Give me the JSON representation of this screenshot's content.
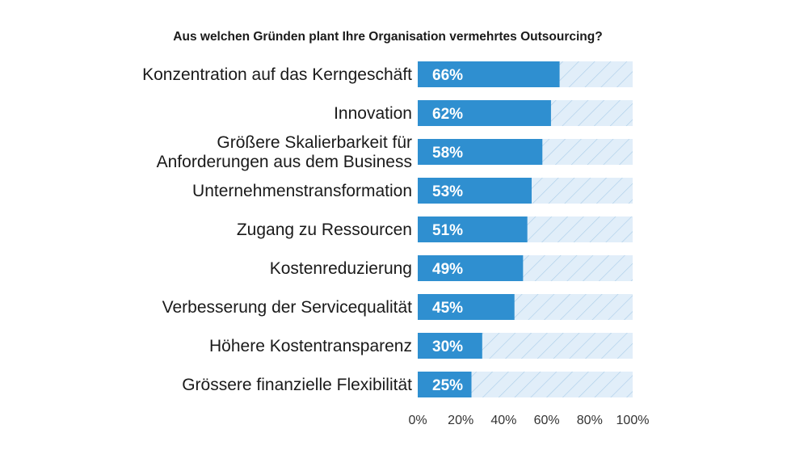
{
  "chart_data": {
    "type": "bar",
    "orientation": "horizontal",
    "title": "Aus welchen Gründen plant Ihre Organisation vermehrtes Outsourcing?",
    "categories": [
      [
        "Konzentration auf das Kerngeschäft"
      ],
      [
        "Innovation"
      ],
      [
        "Größere Skalierbarkeit für",
        "Anforderungen aus dem Business"
      ],
      [
        "Unternehmenstransformation"
      ],
      [
        "Zugang zu Ressourcen"
      ],
      [
        "Kostenreduzierung"
      ],
      [
        "Verbesserung der Servicequalität"
      ],
      [
        "Höhere Kostentransparenz"
      ],
      [
        "Grössere finanzielle Flexibilität"
      ]
    ],
    "values": [
      66,
      62,
      58,
      53,
      51,
      49,
      45,
      30,
      25
    ],
    "value_labels": [
      "66%",
      "62%",
      "58%",
      "53%",
      "51%",
      "49%",
      "45%",
      "30%",
      "25%"
    ],
    "xlim": [
      0,
      100
    ],
    "x_ticks": [
      "0%",
      "20%",
      "40%",
      "60%",
      "80%",
      "100%"
    ],
    "grid": false,
    "background": "hatched-light-blue",
    "colors": {
      "bar": "#2f8fd0",
      "track": "#e1eef9",
      "hatch": "#a9cbe8",
      "value_text": "#ffffff",
      "text": "#1a1a1a"
    }
  }
}
